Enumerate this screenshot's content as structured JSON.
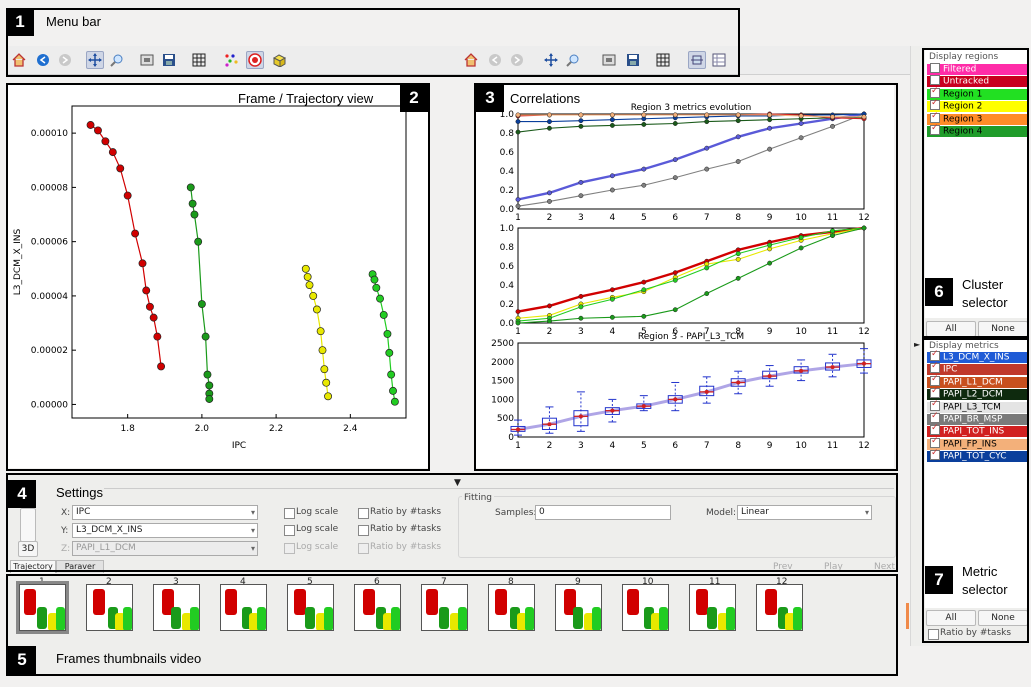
{
  "callouts": {
    "menu_bar": {
      "num": "1",
      "label": "Menu bar"
    },
    "frame_view": {
      "num": "2",
      "label": "Frame / Trajectory view"
    },
    "correlations": {
      "num": "3",
      "label": "Correlations"
    },
    "settings": {
      "num": "4",
      "label": "Settings"
    },
    "thumbnails": {
      "num": "5",
      "label": "Frames thumbnails video"
    },
    "cluster_selector": {
      "num": "6",
      "label_line1": "Cluster",
      "label_line2": "selector"
    },
    "metric_selector": {
      "num": "7",
      "label_line1": "Metric",
      "label_line2": "selector"
    }
  },
  "toolbar_left": [
    "home-icon",
    "back-icon",
    "forward-icon",
    "pan-icon",
    "zoom-icon",
    "configure-icon",
    "save-icon",
    "grid-icon",
    "dots-icon",
    "record-icon",
    "dice-icon"
  ],
  "toolbar_right": [
    "home-icon",
    "back-icon",
    "forward-icon",
    "pan-icon",
    "zoom-icon",
    "configure-icon",
    "save-icon",
    "grid-icon",
    "split-icon",
    "table-icon"
  ],
  "regions_panel": {
    "title": "Display regions",
    "items": [
      {
        "label": "Filtered",
        "color": "#ff2ca8",
        "checked": false
      },
      {
        "label": "Untracked",
        "color": "#c8001e",
        "checked": false
      },
      {
        "label": "Region 1",
        "color": "#22e022",
        "checked": true
      },
      {
        "label": "Region 2",
        "color": "#ffff00",
        "checked": true
      },
      {
        "label": "Region 3",
        "color": "#ff8c28",
        "checked": true
      },
      {
        "label": "Region 4",
        "color": "#1f9c2a",
        "checked": true
      }
    ],
    "all_label": "All",
    "none_label": "None"
  },
  "metrics_panel": {
    "title": "Display metrics",
    "items": [
      {
        "label": "L3_DCM_X_INS",
        "color": "#1f5bd6",
        "checked": true
      },
      {
        "label": "IPC",
        "color": "#c0392b",
        "checked": true
      },
      {
        "label": "PAPI_L1_DCM",
        "color": "#c8501e",
        "checked": true
      },
      {
        "label": "PAPI_L2_DCM",
        "color": "#0e2a0e",
        "checked": true
      },
      {
        "label": "PAPI_L3_TCM",
        "color": "#e4e4e4",
        "checked": true
      },
      {
        "label": "PAPI_BR_MSP",
        "color": "#7a7a7a",
        "checked": true
      },
      {
        "label": "PAPI_TOT_INS",
        "color": "#d12020",
        "checked": true
      },
      {
        "label": "PAPI_FP_INS",
        "color": "#f3b07a",
        "checked": true
      },
      {
        "label": "PAPI_TOT_CYC",
        "color": "#0a3f9c",
        "checked": true
      }
    ],
    "all_label": "All",
    "none_label": "None",
    "ratio_label": "Ratio by #tasks"
  },
  "settings": {
    "x_label": "X:",
    "x_value": "IPC",
    "y_label": "Y:",
    "y_value": "L3_DCM_X_INS",
    "z_label": "Z:",
    "z_value": "PAPI_L1_DCM",
    "log_scale": "Log scale",
    "ratio_tasks": "Ratio by #tasks",
    "fitting_label": "Fitting",
    "samples_label": "Samples:",
    "samples_value": "0",
    "model_label": "Model:",
    "model_value": "Linear",
    "btn_3d": "3D",
    "tab_trajectory": "Trajectory",
    "tab_paraver": "Paraver",
    "prev": "Prev",
    "play": "Play",
    "next": "Next"
  },
  "thumbnails": {
    "labels": [
      "1",
      "2",
      "3",
      "4",
      "5",
      "6",
      "7",
      "8",
      "9",
      "10",
      "11",
      "12"
    ]
  },
  "chart_data": [
    {
      "type": "scatter",
      "title": "",
      "xlabel": "IPC",
      "ylabel": "L3_DCM_X_INS",
      "xlim": [
        1.65,
        2.55
      ],
      "ylim": [
        -5e-06,
        0.00011
      ],
      "x_ticks": [
        "1.8",
        "2.0",
        "2.2",
        "2.4"
      ],
      "y_ticks": [
        "0.00000",
        "0.00002",
        "0.00004",
        "0.00006",
        "0.00008",
        "0.00010"
      ],
      "series": [
        {
          "color": "#d10000",
          "x": [
            1.7,
            1.72,
            1.74,
            1.76,
            1.78,
            1.8,
            1.82,
            1.84,
            1.85,
            1.86,
            1.87,
            1.88,
            1.89
          ],
          "y": [
            0.000103,
            0.000101,
            9.7e-05,
            9.3e-05,
            8.7e-05,
            7.7e-05,
            6.3e-05,
            5.2e-05,
            4.2e-05,
            3.6e-05,
            3.2e-05,
            2.5e-05,
            1.4e-05
          ]
        },
        {
          "color": "#1a9a1a",
          "x": [
            1.97,
            1.975,
            1.98,
            1.99,
            2.0,
            2.01,
            2.015,
            2.02,
            2.02,
            2.02
          ],
          "y": [
            8e-05,
            7.4e-05,
            7e-05,
            6e-05,
            3.7e-05,
            2.5e-05,
            1.1e-05,
            7e-06,
            4e-06,
            2e-06
          ]
        },
        {
          "color": "#e8e800",
          "x": [
            2.28,
            2.285,
            2.29,
            2.3,
            2.31,
            2.32,
            2.325,
            2.33,
            2.335,
            2.34
          ],
          "y": [
            5e-05,
            4.7e-05,
            4.4e-05,
            4e-05,
            3.5e-05,
            2.7e-05,
            2e-05,
            1.3e-05,
            8e-06,
            3e-06
          ]
        },
        {
          "color": "#22cc22",
          "x": [
            2.46,
            2.465,
            2.47,
            2.48,
            2.49,
            2.5,
            2.505,
            2.51,
            2.515,
            2.52
          ],
          "y": [
            4.8e-05,
            4.6e-05,
            4.3e-05,
            3.9e-05,
            3.3e-05,
            2.6e-05,
            1.9e-05,
            1.1e-05,
            5e-06,
            1e-06
          ]
        }
      ]
    },
    {
      "type": "line",
      "title": "Region 3 metrics evolution",
      "x": [
        1,
        2,
        3,
        4,
        5,
        6,
        7,
        8,
        9,
        10,
        11,
        12
      ],
      "ylim": [
        0,
        1
      ],
      "y_ticks": [
        "0.0",
        "0.2",
        "0.4",
        "0.6",
        "0.8",
        "1.0"
      ],
      "series": [
        {
          "color": "#5a5ad8",
          "values": [
            0.1,
            0.17,
            0.28,
            0.35,
            0.42,
            0.52,
            0.64,
            0.76,
            0.85,
            0.9,
            0.95,
            1.0
          ]
        },
        {
          "color": "#808080",
          "values": [
            0.03,
            0.08,
            0.14,
            0.2,
            0.25,
            0.33,
            0.42,
            0.5,
            0.63,
            0.75,
            0.87,
            1.0
          ]
        },
        {
          "color": "#0a3f9c",
          "values": [
            0.92,
            0.92,
            0.93,
            0.94,
            0.95,
            0.96,
            0.97,
            0.98,
            0.98,
            0.99,
            0.99,
            1.0
          ]
        },
        {
          "color": "#1a5a1a",
          "values": [
            0.81,
            0.85,
            0.87,
            0.88,
            0.89,
            0.9,
            0.92,
            0.93,
            0.94,
            0.95,
            0.96,
            0.96
          ]
        },
        {
          "color": "#d12020",
          "values": [
            0.98,
            0.99,
            0.99,
            0.99,
            0.99,
            0.99,
            0.99,
            0.99,
            1.0,
            0.99,
            0.96,
            0.95
          ]
        },
        {
          "color": "#f3b07a",
          "values": [
            0.99,
            0.99,
            0.99,
            0.99,
            0.99,
            0.99,
            0.99,
            0.99,
            0.99,
            0.98,
            0.97,
            0.97
          ]
        }
      ]
    },
    {
      "type": "line",
      "title": "",
      "x": [
        1,
        2,
        3,
        4,
        5,
        6,
        7,
        8,
        9,
        10,
        11,
        12
      ],
      "ylim": [
        0,
        1
      ],
      "y_ticks": [
        "0.0",
        "0.2",
        "0.4",
        "0.6",
        "0.8",
        "1.0"
      ],
      "series": [
        {
          "color": "#d10000",
          "values": [
            0.12,
            0.18,
            0.28,
            0.35,
            0.43,
            0.53,
            0.65,
            0.77,
            0.85,
            0.92,
            0.96,
            1.0
          ]
        },
        {
          "color": "#e8e800",
          "values": [
            0.05,
            0.08,
            0.2,
            0.27,
            0.33,
            0.48,
            0.62,
            0.67,
            0.78,
            0.87,
            0.94,
            1.0
          ]
        },
        {
          "color": "#22cc22",
          "values": [
            0.02,
            0.05,
            0.17,
            0.25,
            0.35,
            0.45,
            0.58,
            0.73,
            0.82,
            0.9,
            0.97,
            1.0
          ]
        },
        {
          "color": "#1a9a1a",
          "values": [
            0.0,
            0.02,
            0.05,
            0.06,
            0.07,
            0.14,
            0.31,
            0.47,
            0.63,
            0.79,
            0.92,
            1.0
          ]
        }
      ]
    },
    {
      "type": "box",
      "title": "Region 3 - PAPI_L3_TCM",
      "x": [
        1,
        2,
        3,
        4,
        5,
        6,
        7,
        8,
        9,
        10,
        11,
        12
      ],
      "ylim": [
        0,
        2500
      ],
      "y_ticks": [
        "0",
        "500",
        "1000",
        "1500",
        "2000",
        "2500"
      ],
      "medians": [
        200,
        340,
        550,
        700,
        820,
        1000,
        1200,
        1450,
        1620,
        1760,
        1860,
        1950
      ],
      "q1": [
        150,
        200,
        300,
        600,
        760,
        900,
        1100,
        1350,
        1550,
        1700,
        1780,
        1850
      ],
      "q3": [
        280,
        500,
        700,
        780,
        880,
        1100,
        1350,
        1550,
        1750,
        1870,
        1970,
        2050
      ],
      "whisker_low": [
        50,
        100,
        150,
        400,
        700,
        700,
        900,
        1150,
        1350,
        1500,
        1600,
        1700
      ],
      "whisker_high": [
        450,
        800,
        1200,
        1000,
        1100,
        1450,
        1600,
        1750,
        1900,
        2050,
        2200,
        2350
      ]
    }
  ]
}
